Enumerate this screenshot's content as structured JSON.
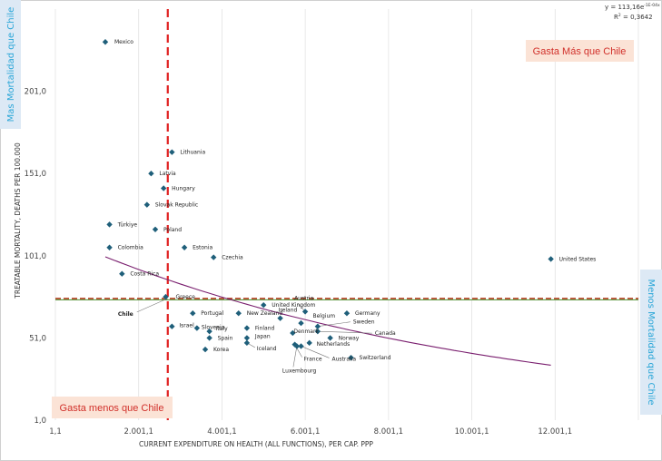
{
  "chart_data": {
    "type": "scatter",
    "xlabel": "CURRENT EXPENDITURE ON HEALTH (ALL FUNCTIONS), PER CAP. PPP",
    "ylabel": "TREATABLE MORTALITY, DEATHS PER 100.000",
    "xlim": [
      1.1,
      14001.1
    ],
    "ylim": [
      1.0,
      251.0
    ],
    "xticks": [
      1.1,
      2001.1,
      4001.1,
      6001.1,
      8001.1,
      10001.1,
      12001.1
    ],
    "xtick_labels": [
      "1,1",
      "2.001,1",
      "4.001,1",
      "6.001,1",
      "8.001,1",
      "10.001,1",
      "12.001,1"
    ],
    "yticks": [
      1.0,
      51.0,
      101.0,
      151.0,
      201.0
    ],
    "ytick_labels": [
      "1,0",
      "51,0",
      "101,0",
      "151,0",
      "201,0"
    ],
    "grid": "vertical",
    "marker_color": "#1f5f7a",
    "points": [
      {
        "label": "Mexico",
        "x": 1200,
        "y": 231
      },
      {
        "label": "Lithuania",
        "x": 2800,
        "y": 164
      },
      {
        "label": "Latvia",
        "x": 2300,
        "y": 151
      },
      {
        "label": "Hungary",
        "x": 2600,
        "y": 142
      },
      {
        "label": "Slovak Republic",
        "x": 2200,
        "y": 132
      },
      {
        "label": "Türkiye",
        "x": 1300,
        "y": 120
      },
      {
        "label": "Poland",
        "x": 2400,
        "y": 117
      },
      {
        "label": "Colombia",
        "x": 1300,
        "y": 106
      },
      {
        "label": "Estonia",
        "x": 3100,
        "y": 106
      },
      {
        "label": "Czechia",
        "x": 3800,
        "y": 100
      },
      {
        "label": "United States",
        "x": 11900,
        "y": 99
      },
      {
        "label": "Costa Rica",
        "x": 1600,
        "y": 90
      },
      {
        "label": "Greece",
        "x": 2650,
        "y": 76
      },
      {
        "label": "Chile",
        "x": 2700,
        "y": 75,
        "highlight": true
      },
      {
        "label": "United Kingdom",
        "x": 5000,
        "y": 71
      },
      {
        "label": "Austria",
        "x": 6000,
        "y": 67
      },
      {
        "label": "Germany",
        "x": 7000,
        "y": 66
      },
      {
        "label": "Portugal",
        "x": 3300,
        "y": 66
      },
      {
        "label": "New Zealand",
        "x": 4400,
        "y": 66
      },
      {
        "label": "Ireland",
        "x": 5400,
        "y": 63
      },
      {
        "label": "Belgium",
        "x": 5900,
        "y": 60
      },
      {
        "label": "Sweden",
        "x": 6300,
        "y": 58
      },
      {
        "label": "Israel",
        "x": 2800,
        "y": 58
      },
      {
        "label": "Slovenia",
        "x": 3400,
        "y": 57
      },
      {
        "label": "Finland",
        "x": 4600,
        "y": 57
      },
      {
        "label": "Italy",
        "x": 3700,
        "y": 55
      },
      {
        "label": "Denmark",
        "x": 5700,
        "y": 54
      },
      {
        "label": "Canada",
        "x": 6300,
        "y": 55
      },
      {
        "label": "Spain",
        "x": 3700,
        "y": 51
      },
      {
        "label": "Japan",
        "x": 4600,
        "y": 51
      },
      {
        "label": "Norway",
        "x": 6600,
        "y": 51
      },
      {
        "label": "Netherlands",
        "x": 6100,
        "y": 48
      },
      {
        "label": "Iceland",
        "x": 4600,
        "y": 48
      },
      {
        "label": "Korea",
        "x": 3600,
        "y": 44
      },
      {
        "label": "France",
        "x": 5750,
        "y": 47
      },
      {
        "label": "Australia",
        "x": 5900,
        "y": 46
      },
      {
        "label": "Luxembourg",
        "x": 5800,
        "y": 46
      },
      {
        "label": "Switzerland",
        "x": 7100,
        "y": 39
      }
    ],
    "trendline": {
      "type": "exponential",
      "equation": "y = 113,16e-1E-04x",
      "r2": "R² = 0,3642",
      "color": "#7a1f6f",
      "x_start": 1200,
      "x_end": 11900
    },
    "reference_lines": [
      {
        "orientation": "vertical",
        "x": 2700,
        "color": "#e02020",
        "style": "dashed"
      },
      {
        "orientation": "horizontal",
        "y": 75,
        "color": "#b03a1a",
        "style": "dashed"
      },
      {
        "orientation": "horizontal",
        "y": 75,
        "color": "#4a8a2a",
        "style": "solid"
      }
    ]
  },
  "labels": {
    "eq_text": "y = 113,16e",
    "eq_exp": "-1E-04x",
    "r2_text": "R",
    "r2_sup": "2",
    "r2_value": " = 0,3642",
    "left_side": "Mas Mortalidad que Chile",
    "right_side": "Menos Mortalidad que Chile",
    "top_quadrant": "Gasta Más que Chile",
    "bottom_quadrant": "Gasta menos  que Chile"
  },
  "colors": {
    "quad_box": "#fbe3d6",
    "side_box": "#dde9f5",
    "quad_text": "#d1302a",
    "side_text": "#2aa6d8",
    "chile_label": "#e02020",
    "marker": "#1f5f7a"
  }
}
